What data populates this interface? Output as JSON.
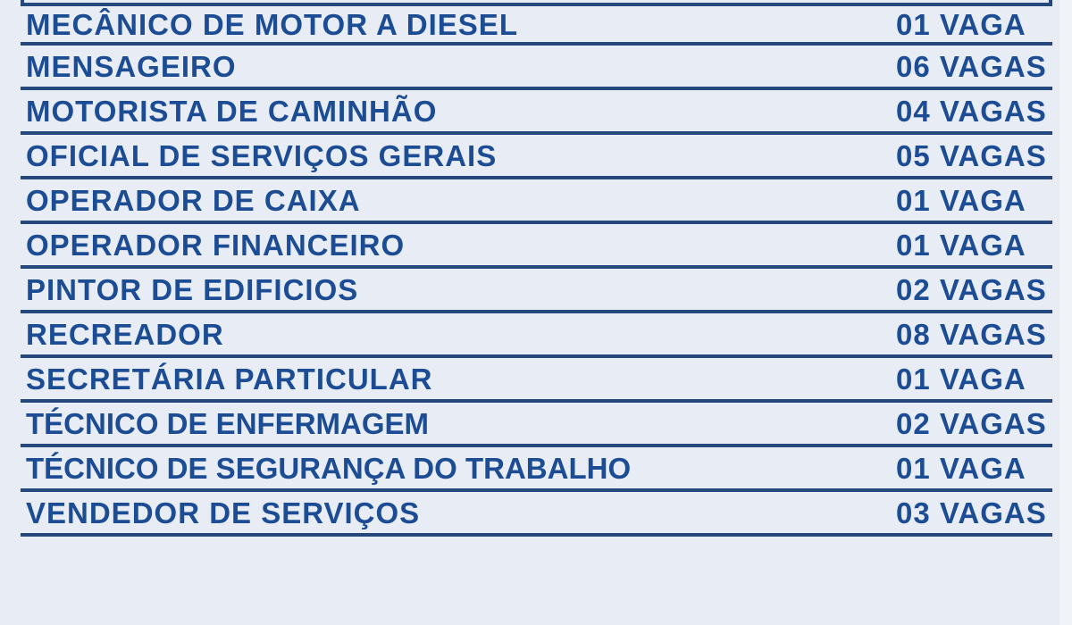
{
  "theme": {
    "background_color": "#e8ecf4",
    "right_margin_color": "#f0f3f8",
    "line_color": "#24477e",
    "text_color": "#1c4c93"
  },
  "vacancy_table": {
    "rows": [
      {
        "title": "MECÂNICO DE MOTOR A DIESEL",
        "vacancies": "01 VAGA"
      },
      {
        "title": "MENSAGEIRO",
        "vacancies": "06 VAGAS"
      },
      {
        "title": "MOTORISTA DE CAMINHÃO",
        "vacancies": "04 VAGAS"
      },
      {
        "title": "OFICIAL DE SERVIÇOS GERAIS",
        "vacancies": "05 VAGAS"
      },
      {
        "title": "OPERADOR DE CAIXA",
        "vacancies": "01 VAGA"
      },
      {
        "title": "OPERADOR FINANCEIRO",
        "vacancies": "01 VAGA"
      },
      {
        "title": "PINTOR DE EDIFICIOS",
        "vacancies": "02 VAGAS"
      },
      {
        "title": "RECREADOR",
        "vacancies": "08 VAGAS"
      },
      {
        "title": "SECRETÁRIA PARTICULAR",
        "vacancies": "01 VAGA"
      },
      {
        "title": "TÉCNICO DE ENFERMAGEM",
        "vacancies": "02 VAGAS"
      },
      {
        "title": "TÉCNICO DE SEGURANÇA DO TRABALHO",
        "vacancies": "01 VAGA"
      },
      {
        "title": "VENDEDOR DE SERVIÇOS",
        "vacancies": "03 VAGAS"
      }
    ]
  }
}
